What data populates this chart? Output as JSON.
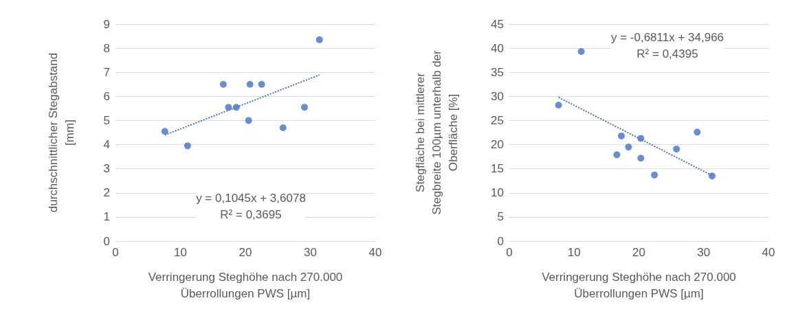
{
  "chart_data": [
    {
      "type": "scatter",
      "xlabel": "Verringerung Steghöhe nach 270.000\nÜberrollungen PWS [µm]",
      "ylabel": "durchschnittlicher Stegabstand\n[mm]",
      "annotations": [
        "y = 0,1045x + 3,6078\nR² = 0,3695"
      ],
      "xlim": [
        0,
        40
      ],
      "xticks": [
        0,
        10,
        20,
        30,
        40
      ],
      "ylim": [
        0,
        9
      ],
      "yticks": [
        0,
        1,
        2,
        3,
        4,
        5,
        6,
        7,
        8,
        9
      ],
      "grid": "y",
      "series": [
        {
          "marker": "circle",
          "color": "#4472c4",
          "x": [
            7.6,
            11.1,
            16.6,
            17.4,
            18.6,
            20.5,
            20.7,
            22.5,
            25.8,
            29.1,
            31.4
          ],
          "values": [
            4.55,
            3.95,
            6.5,
            5.55,
            5.55,
            5.0,
            6.5,
            6.5,
            4.7,
            5.55,
            8.35
          ]
        },
        {
          "type": "line",
          "marker": "none",
          "line_style": "dotted",
          "color": "#4472c4",
          "x": [
            7.6,
            31.4
          ],
          "values": [
            4.4,
            6.89
          ]
        }
      ]
    },
    {
      "type": "scatter",
      "xlabel": "Verringerung Steghöhe nach 270.000\nÜberrollungen PWS [µm]",
      "ylabel": "Stegfläche bei mittlerer\nStegbreite 100µm unterhalb der\nOberfläche [%]",
      "annotations": [
        "y = -0,6811x + 34,966\nR² = 0,4395"
      ],
      "xlim": [
        0,
        40
      ],
      "xticks": [
        0,
        10,
        20,
        30,
        40
      ],
      "ylim": [
        0,
        45
      ],
      "yticks": [
        0,
        5,
        10,
        15,
        20,
        25,
        30,
        35,
        40,
        45
      ],
      "grid": "y",
      "series": [
        {
          "marker": "circle",
          "color": "#4472c4",
          "x": [
            7.6,
            11.1,
            16.6,
            17.3,
            18.4,
            20.3,
            20.3,
            22.4,
            25.8,
            29.0,
            31.3
          ],
          "values": [
            28.2,
            39.3,
            17.9,
            21.8,
            19.5,
            17.2,
            21.3,
            13.7,
            19.1,
            22.6,
            13.5
          ]
        },
        {
          "type": "line",
          "marker": "none",
          "line_style": "dotted",
          "color": "#4472c4",
          "x": [
            7.6,
            31.3
          ],
          "values": [
            29.8,
            13.6
          ]
        }
      ]
    }
  ]
}
